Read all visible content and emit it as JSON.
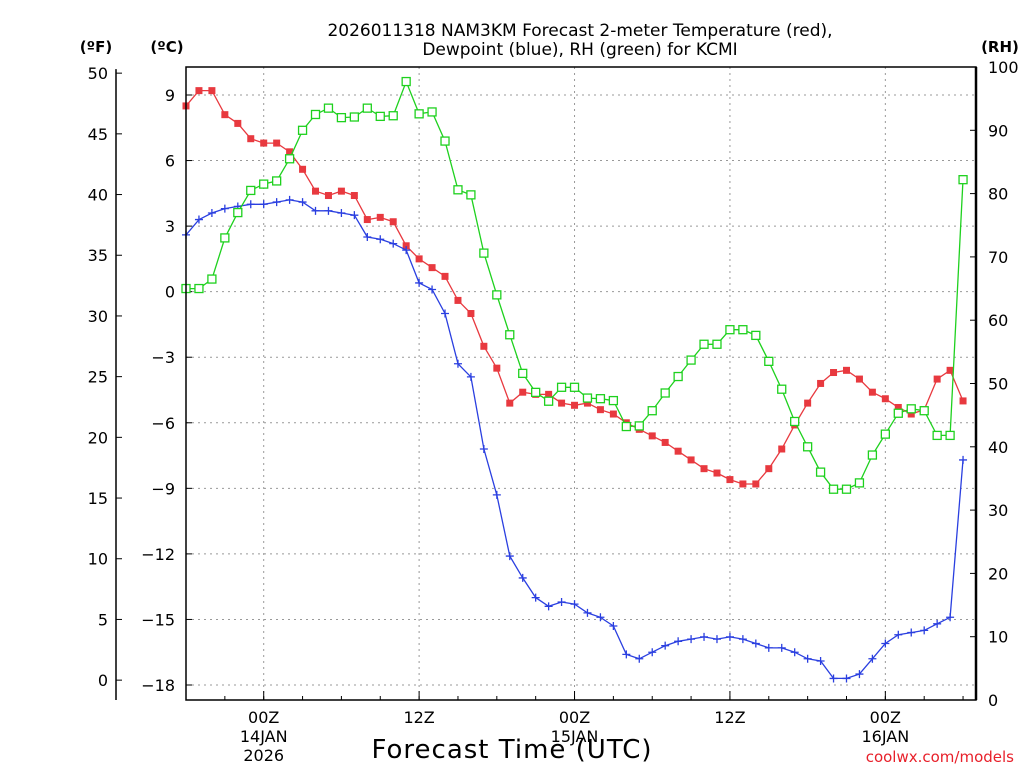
{
  "chart_data": {
    "type": "line",
    "title_line1": "2026011318 NAM3KM Forecast 2-meter Temperature (red),",
    "title_line2": "Dewpoint (blue), RH (green) for KCMI",
    "xlabel": "Forecast Time (UTC)",
    "credit": "coolwx.com/models",
    "units": {
      "fahrenheit": "(ºF)",
      "celsius": "(ºC)",
      "rh": "(RH)"
    },
    "x_hours": {
      "start": 0,
      "end": 61,
      "step": 1
    },
    "celsius_axis": {
      "range": [
        -19,
        10.5
      ],
      "ticks": [
        "9",
        "6",
        "3",
        "0",
        "−3",
        "−6",
        "−9",
        "−12",
        "−15",
        "−18"
      ],
      "tick_values": [
        9,
        6,
        3,
        0,
        -3,
        -6,
        -9,
        -12,
        -15,
        -18
      ]
    },
    "fahrenheit_axis": {
      "ticks": [
        "50",
        "45",
        "40",
        "35",
        "30",
        "25",
        "20",
        "15",
        "10",
        "5",
        "0"
      ],
      "tick_values": [
        50,
        45,
        40,
        35,
        30,
        25,
        20,
        15,
        10,
        5,
        0
      ]
    },
    "rh_axis": {
      "range": [
        0,
        100
      ],
      "ticks": [
        "100",
        "90",
        "80",
        "70",
        "60",
        "50",
        "40",
        "30",
        "20",
        "10",
        "0"
      ],
      "tick_values": [
        100,
        90,
        80,
        70,
        60,
        50,
        40,
        30,
        20,
        10,
        0
      ]
    },
    "x_ticks": [
      {
        "hour": 6,
        "line1": "00Z",
        "line2": "14JAN",
        "line3": "2026"
      },
      {
        "hour": 18,
        "line1": "12Z",
        "line2": "",
        "line3": ""
      },
      {
        "hour": 30,
        "line1": "00Z",
        "line2": "15JAN",
        "line3": ""
      },
      {
        "hour": 42,
        "line1": "12Z",
        "line2": "",
        "line3": ""
      },
      {
        "hour": 54,
        "line1": "00Z",
        "line2": "16JAN",
        "line3": ""
      }
    ],
    "series": [
      {
        "name": "Temperature",
        "unit": "°C",
        "color": "#e8393f",
        "marker": "filled-square",
        "values": [
          8.5,
          9.2,
          9.2,
          8.1,
          7.7,
          7,
          6.8,
          6.8,
          6.4,
          5.6,
          4.6,
          4.4,
          4.6,
          4.4,
          3.3,
          3.4,
          3.2,
          2.1,
          1.5,
          1.1,
          0.7,
          -0.4,
          -1,
          -2.5,
          -3.5,
          -5.1,
          -4.6,
          -4.7,
          -4.7,
          -5.1,
          -5.2,
          -5.1,
          -5.4,
          -5.6,
          -6,
          -6.3,
          -6.6,
          -6.9,
          -7.3,
          -7.7,
          -8.1,
          -8.3,
          -8.6,
          -8.8,
          -8.8,
          -8.1,
          -7.2,
          -6.1,
          -5.1,
          -4.2,
          -3.7,
          -3.6,
          -4,
          -4.6,
          -4.9,
          -5.3,
          -5.6,
          -5.4,
          -4,
          -3.6,
          -5
        ]
      },
      {
        "name": "Dewpoint",
        "unit": "°C",
        "color": "#2a3fe0",
        "marker": "plus",
        "values": [
          2.6,
          3.3,
          3.6,
          3.8,
          3.9,
          4,
          4,
          4.1,
          4.2,
          4.1,
          3.7,
          3.7,
          3.6,
          3.5,
          2.5,
          2.4,
          2.2,
          1.9,
          0.4,
          0.1,
          -1,
          -3.3,
          -3.9,
          -7.2,
          -9.3,
          -12.1,
          -13.1,
          -14,
          -14.4,
          -14.2,
          -14.3,
          -14.7,
          -14.9,
          -15.3,
          -16.6,
          -16.8,
          -16.5,
          -16.2,
          -16,
          -15.9,
          -15.8,
          -15.9,
          -15.8,
          -15.9,
          -16.1,
          -16.3,
          -16.3,
          -16.5,
          -16.8,
          -16.9,
          -17.7,
          -17.7,
          -17.5,
          -16.8,
          -16.1,
          -15.7,
          -15.6,
          -15.5,
          -15.2,
          -14.9,
          -7.7
        ]
      },
      {
        "name": "RH",
        "unit": "%",
        "color": "#1ed11e",
        "marker": "open-square",
        "values": [
          65,
          65,
          66.5,
          73,
          77,
          80.5,
          81.5,
          82,
          85.5,
          90,
          92.5,
          93.5,
          92,
          92.1,
          93.5,
          92.2,
          92.3,
          97.7,
          92.6,
          92.9,
          88.3,
          80.6,
          79.8,
          70.6,
          64,
          57.7,
          51.6,
          48.6,
          47.2,
          49.4,
          49.4,
          47.7,
          47.6,
          47.3,
          43.2,
          43.3,
          45.7,
          48.5,
          51.1,
          53.7,
          56.2,
          56.2,
          58.5,
          58.5,
          57.6,
          53.5,
          49.1,
          44,
          40,
          36,
          33.3,
          33.3,
          34.3,
          38.7,
          42,
          45.3,
          46,
          45.7,
          41.8,
          41.8,
          82.2
        ]
      }
    ]
  }
}
